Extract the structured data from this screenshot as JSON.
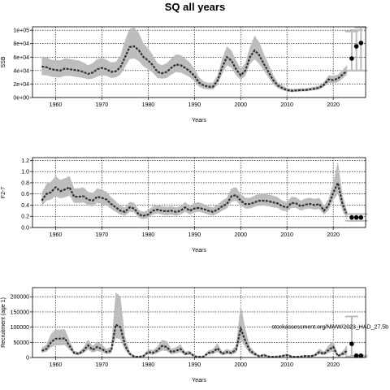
{
  "title": "SQ all years",
  "colors": {
    "band": "#bdbdbd",
    "line": "#303030",
    "grid": "#000000",
    "point": "#000000",
    "errorbar": "#bdbdbd"
  },
  "chart_data": [
    {
      "type": "line",
      "id": "ssb",
      "title": "",
      "xlabel": "Years",
      "ylabel": "SSB",
      "xlim": [
        1955,
        2027
      ],
      "ylim": [
        0,
        105000
      ],
      "x_ticks": [
        1960,
        1970,
        1980,
        1990,
        2000,
        2010,
        2020
      ],
      "y_ticks": [
        0,
        20000,
        40000,
        60000,
        80000,
        100000
      ],
      "y_tick_labels": [
        "0e+00",
        "2e+04",
        "4e+04",
        "6e+04",
        "8e+04",
        "1e+05"
      ],
      "grid": true,
      "series": [
        {
          "role": "estimate",
          "x": [
            1957,
            1958,
            1959,
            1960,
            1961,
            1962,
            1963,
            1964,
            1965,
            1966,
            1967,
            1968,
            1969,
            1970,
            1971,
            1972,
            1973,
            1974,
            1975,
            1976,
            1977,
            1978,
            1979,
            1980,
            1981,
            1982,
            1983,
            1984,
            1985,
            1986,
            1987,
            1988,
            1989,
            1990,
            1991,
            1992,
            1993,
            1994,
            1995,
            1996,
            1997,
            1998,
            1999,
            2000,
            2001,
            2002,
            2003,
            2004,
            2005,
            2006,
            2007,
            2008,
            2009,
            2010,
            2011,
            2012,
            2013,
            2014,
            2015,
            2016,
            2017,
            2018,
            2019,
            2020,
            2021,
            2022,
            2023
          ],
          "y": [
            46000,
            45000,
            42000,
            41000,
            40000,
            43000,
            42000,
            41000,
            40000,
            38000,
            35000,
            37000,
            42000,
            44000,
            42000,
            38000,
            39000,
            45000,
            60000,
            75000,
            76000,
            70000,
            60000,
            55000,
            48000,
            38000,
            36000,
            38000,
            44000,
            49000,
            48000,
            44000,
            39000,
            32000,
            22000,
            18000,
            16000,
            16000,
            25000,
            45000,
            60000,
            55000,
            42000,
            33000,
            40000,
            60000,
            70000,
            63000,
            50000,
            38000,
            26000,
            18000,
            14000,
            11000,
            10000,
            10500,
            11000,
            11000,
            12000,
            13000,
            14500,
            19000,
            27000,
            26000,
            28000,
            34000,
            40000
          ],
          "lower": [
            33000,
            33000,
            31000,
            30000,
            30000,
            32000,
            32000,
            31000,
            30000,
            29000,
            27000,
            28000,
            31000,
            33000,
            32000,
            29000,
            30000,
            34000,
            45000,
            57000,
            58000,
            54000,
            46000,
            42000,
            37000,
            29000,
            28000,
            29000,
            34000,
            38000,
            37000,
            34000,
            30000,
            24000,
            16000,
            13000,
            12000,
            12000,
            19000,
            35000,
            48000,
            44000,
            33000,
            26000,
            32000,
            50000,
            57000,
            50000,
            40000,
            30000,
            20000,
            14000,
            11000,
            8500,
            8000,
            8500,
            9000,
            9000,
            10000,
            11000,
            12000,
            16000,
            22000,
            21000,
            23000,
            28000,
            34000
          ],
          "upper": [
            61000,
            60000,
            56000,
            56000,
            55000,
            58000,
            57000,
            56000,
            55000,
            52000,
            48000,
            51000,
            57000,
            59000,
            56000,
            52000,
            53000,
            62000,
            85000,
            102000,
            104000,
            96000,
            80000,
            73000,
            63000,
            51000,
            48000,
            51000,
            58000,
            64000,
            63000,
            58000,
            52000,
            43000,
            30000,
            24000,
            22000,
            22000,
            33000,
            58000,
            76000,
            70000,
            55000,
            43000,
            51000,
            75000,
            92000,
            82000,
            65000,
            50000,
            34000,
            23000,
            18000,
            14000,
            13000,
            13000,
            13500,
            13500,
            15000,
            16000,
            18000,
            23000,
            33000,
            32000,
            34000,
            41000,
            48000
          ]
        },
        {
          "role": "projection",
          "x": [
            2024,
            2025,
            2026
          ],
          "y": [
            58000,
            76000,
            81000
          ],
          "lower": [
            40000,
            40000,
            40000
          ],
          "upper": [
            98000,
            100000,
            104000
          ]
        }
      ]
    },
    {
      "type": "line",
      "id": "fbar",
      "title": "",
      "xlabel": "Years",
      "ylabel": "F2-7",
      "xlim": [
        1955,
        2027
      ],
      "ylim": [
        0,
        1.25
      ],
      "x_ticks": [
        1960,
        1970,
        1980,
        1990,
        2000,
        2010,
        2020
      ],
      "y_ticks": [
        0,
        0.2,
        0.4,
        0.6,
        0.8,
        1.0,
        1.2
      ],
      "y_tick_labels": [
        "0.0",
        "0.2",
        "0.4",
        "0.6",
        "0.8",
        "1.0",
        "1.2"
      ],
      "grid": true,
      "series": [
        {
          "role": "estimate",
          "x": [
            1957,
            1958,
            1959,
            1960,
            1961,
            1962,
            1963,
            1964,
            1965,
            1966,
            1967,
            1968,
            1969,
            1970,
            1971,
            1972,
            1973,
            1974,
            1975,
            1976,
            1977,
            1978,
            1979,
            1980,
            1981,
            1982,
            1983,
            1984,
            1985,
            1986,
            1987,
            1988,
            1989,
            1990,
            1991,
            1992,
            1993,
            1994,
            1995,
            1996,
            1997,
            1998,
            1999,
            2000,
            2001,
            2002,
            2003,
            2004,
            2005,
            2006,
            2007,
            2008,
            2009,
            2010,
            2011,
            2012,
            2013,
            2014,
            2015,
            2016,
            2017,
            2018,
            2019,
            2020,
            2021,
            2022,
            2023
          ],
          "y": [
            0.48,
            0.6,
            0.63,
            0.72,
            0.65,
            0.68,
            0.72,
            0.55,
            0.55,
            0.56,
            0.5,
            0.48,
            0.55,
            0.53,
            0.5,
            0.42,
            0.36,
            0.3,
            0.28,
            0.36,
            0.34,
            0.23,
            0.21,
            0.23,
            0.3,
            0.32,
            0.3,
            0.29,
            0.3,
            0.28,
            0.3,
            0.36,
            0.3,
            0.34,
            0.35,
            0.33,
            0.3,
            0.28,
            0.32,
            0.38,
            0.42,
            0.56,
            0.58,
            0.48,
            0.42,
            0.42,
            0.45,
            0.48,
            0.48,
            0.47,
            0.45,
            0.43,
            0.38,
            0.36,
            0.44,
            0.43,
            0.38,
            0.41,
            0.42,
            0.4,
            0.42,
            0.3,
            0.4,
            0.62,
            0.8,
            0.42,
            0.22
          ],
          "lower": [
            0.38,
            0.48,
            0.5,
            0.56,
            0.52,
            0.54,
            0.57,
            0.44,
            0.44,
            0.45,
            0.4,
            0.38,
            0.44,
            0.42,
            0.4,
            0.33,
            0.28,
            0.23,
            0.21,
            0.28,
            0.27,
            0.17,
            0.15,
            0.17,
            0.23,
            0.25,
            0.23,
            0.22,
            0.23,
            0.21,
            0.23,
            0.28,
            0.23,
            0.27,
            0.28,
            0.26,
            0.23,
            0.21,
            0.25,
            0.3,
            0.34,
            0.46,
            0.48,
            0.39,
            0.34,
            0.34,
            0.37,
            0.39,
            0.39,
            0.38,
            0.36,
            0.35,
            0.3,
            0.29,
            0.35,
            0.35,
            0.3,
            0.33,
            0.34,
            0.32,
            0.33,
            0.23,
            0.31,
            0.49,
            0.6,
            0.3,
            0.14
          ],
          "upper": [
            0.62,
            0.78,
            0.82,
            0.92,
            0.85,
            0.88,
            0.92,
            0.7,
            0.7,
            0.72,
            0.64,
            0.62,
            0.7,
            0.68,
            0.64,
            0.54,
            0.47,
            0.39,
            0.36,
            0.46,
            0.44,
            0.31,
            0.28,
            0.31,
            0.38,
            0.41,
            0.38,
            0.37,
            0.38,
            0.36,
            0.38,
            0.46,
            0.38,
            0.44,
            0.45,
            0.42,
            0.38,
            0.36,
            0.41,
            0.48,
            0.53,
            0.7,
            0.72,
            0.6,
            0.53,
            0.53,
            0.57,
            0.6,
            0.6,
            0.59,
            0.57,
            0.54,
            0.48,
            0.46,
            0.55,
            0.54,
            0.48,
            0.52,
            0.53,
            0.51,
            0.53,
            0.39,
            0.51,
            0.8,
            1.18,
            0.58,
            0.3
          ]
        },
        {
          "role": "projection",
          "x": [
            2024,
            2025,
            2026
          ],
          "y": [
            0.18,
            0.18,
            0.18
          ],
          "lower": [
            0.12,
            0.12,
            0.12
          ],
          "upper": [
            0.24,
            0.24,
            0.24
          ]
        }
      ]
    },
    {
      "type": "line",
      "id": "recruitment",
      "title": "",
      "xlabel": "Years",
      "ylabel": "Recruitment (age 1)",
      "annotation": "stockassessment.org/NWW/2023_HAD_27.5b",
      "xlim": [
        1955,
        2027
      ],
      "ylim": [
        0,
        230000
      ],
      "x_ticks": [
        1960,
        1970,
        1980,
        1990,
        2000,
        2010,
        2020
      ],
      "y_ticks": [
        0,
        50000,
        100000,
        150000,
        200000
      ],
      "y_tick_labels": [
        "0",
        "50000",
        "100000",
        "150000",
        "200000"
      ],
      "grid": true,
      "series": [
        {
          "role": "estimate",
          "x": [
            1957,
            1958,
            1959,
            1960,
            1961,
            1962,
            1963,
            1964,
            1965,
            1966,
            1967,
            1968,
            1969,
            1970,
            1971,
            1972,
            1973,
            1974,
            1975,
            1976,
            1977,
            1978,
            1979,
            1980,
            1981,
            1982,
            1983,
            1984,
            1985,
            1986,
            1987,
            1988,
            1989,
            1990,
            1991,
            1992,
            1993,
            1994,
            1995,
            1996,
            1997,
            1998,
            1999,
            2000,
            2001,
            2002,
            2003,
            2004,
            2005,
            2006,
            2007,
            2008,
            2009,
            2010,
            2011,
            2012,
            2013,
            2014,
            2015,
            2016,
            2017,
            2018,
            2019,
            2020,
            2021,
            2022,
            2023
          ],
          "y": [
            22000,
            28000,
            50000,
            62000,
            62000,
            63000,
            38000,
            15000,
            12000,
            22000,
            40000,
            25000,
            35000,
            28000,
            18000,
            22000,
            108000,
            100000,
            40000,
            12000,
            3000,
            2000,
            5000,
            18000,
            15000,
            23000,
            38000,
            35000,
            18000,
            22000,
            28000,
            12000,
            15000,
            4000,
            2000,
            3000,
            15000,
            18000,
            30000,
            12000,
            18000,
            15000,
            25000,
            95000,
            55000,
            22000,
            12000,
            4000,
            8000,
            3000,
            2000,
            3000,
            5000,
            8000,
            3000,
            2000,
            3000,
            5000,
            4000,
            7000,
            18000,
            12000,
            25000,
            35000,
            5000,
            12000,
            22000
          ],
          "lower": [
            15000,
            19000,
            33000,
            40000,
            40000,
            41000,
            25000,
            10000,
            8000,
            14000,
            26000,
            16000,
            22000,
            18000,
            11000,
            13000,
            65000,
            60000,
            24000,
            7000,
            1800,
            1200,
            3000,
            11000,
            9000,
            14000,
            23000,
            21000,
            11000,
            13000,
            17000,
            7000,
            9000,
            2400,
            1200,
            1800,
            9000,
            11000,
            18000,
            7000,
            11000,
            9000,
            15000,
            58000,
            34000,
            13000,
            7000,
            2400,
            5000,
            1800,
            1200,
            1800,
            3000,
            5000,
            1800,
            1200,
            1800,
            3000,
            2400,
            4200,
            11000,
            7000,
            15000,
            21000,
            3000,
            6000,
            9000
          ],
          "upper": [
            32000,
            42000,
            78000,
            92000,
            92000,
            93000,
            56000,
            22000,
            18000,
            33000,
            60000,
            38000,
            53000,
            43000,
            28000,
            35000,
            215000,
            200000,
            70000,
            20000,
            5000,
            3500,
            8000,
            28000,
            24000,
            36000,
            58000,
            54000,
            28000,
            34000,
            43000,
            19000,
            23000,
            7000,
            3500,
            5000,
            23000,
            28000,
            47000,
            19000,
            28000,
            23000,
            40000,
            175000,
            95000,
            36000,
            19000,
            7000,
            13000,
            5000,
            3500,
            5000,
            8000,
            13000,
            5000,
            3500,
            5000,
            8000,
            7000,
            11000,
            29000,
            19000,
            40000,
            55000,
            9000,
            20000,
            40000
          ]
        },
        {
          "role": "projection",
          "x": [
            2024,
            2025,
            2026
          ],
          "y": [
            45000,
            6000,
            6000
          ],
          "lower": [
            4000,
            2000,
            2000
          ],
          "upper": [
            135000,
            6000,
            6000
          ]
        }
      ]
    }
  ]
}
